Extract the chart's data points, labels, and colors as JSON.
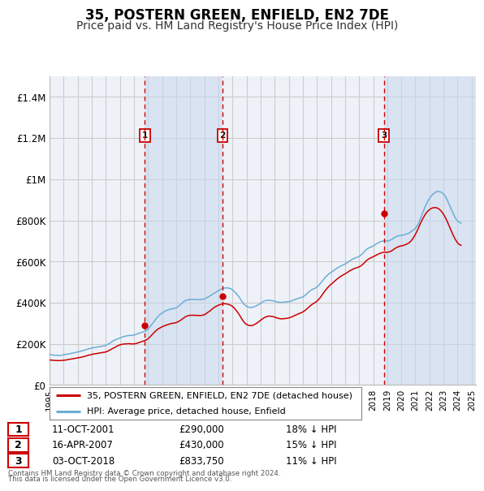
{
  "title": "35, POSTERN GREEN, ENFIELD, EN2 7DE",
  "subtitle": "Price paid vs. HM Land Registry's House Price Index (HPI)",
  "title_fontsize": 12,
  "subtitle_fontsize": 10,
  "background_color": "#ffffff",
  "plot_bg_color": "#eef2f8",
  "grid_color": "#cccccc",
  "ylim": [
    0,
    1500000
  ],
  "yticks": [
    0,
    200000,
    400000,
    600000,
    800000,
    1000000,
    1200000,
    1400000
  ],
  "ytick_labels": [
    "£0",
    "£200K",
    "£400K",
    "£600K",
    "£800K",
    "£1M",
    "£1.2M",
    "£1.4M"
  ],
  "xlim_start": 1995.0,
  "xlim_end": 2025.3,
  "transactions": [
    {
      "year": 2001.78,
      "price": 290000,
      "label": "1"
    },
    {
      "year": 2007.29,
      "price": 430000,
      "label": "2"
    },
    {
      "year": 2018.75,
      "price": 833750,
      "label": "3"
    }
  ],
  "transaction_color": "#cc0000",
  "hpi_color": "#6baed6",
  "shade_color": "#c8d8ee",
  "legend_items": [
    {
      "label": "35, POSTERN GREEN, ENFIELD, EN2 7DE (detached house)",
      "color": "#cc0000"
    },
    {
      "label": "HPI: Average price, detached house, Enfield",
      "color": "#6baed6"
    }
  ],
  "table_rows": [
    {
      "num": "1",
      "date": "11-OCT-2001",
      "price": "£290,000",
      "hpi": "18% ↓ HPI"
    },
    {
      "num": "2",
      "date": "16-APR-2007",
      "price": "£430,000",
      "hpi": "15% ↓ HPI"
    },
    {
      "num": "3",
      "date": "03-OCT-2018",
      "price": "£833,750",
      "hpi": "11% ↓ HPI"
    }
  ],
  "footer": "Contains HM Land Registry data © Crown copyright and database right 2024.\nThis data is licensed under the Open Government Licence v3.0.",
  "hpi_data_years": [
    1995.0,
    1995.083,
    1995.167,
    1995.25,
    1995.333,
    1995.417,
    1995.5,
    1995.583,
    1995.667,
    1995.75,
    1995.833,
    1995.917,
    1996.0,
    1996.083,
    1996.167,
    1996.25,
    1996.333,
    1996.417,
    1996.5,
    1996.583,
    1996.667,
    1996.75,
    1996.833,
    1996.917,
    1997.0,
    1997.083,
    1997.167,
    1997.25,
    1997.333,
    1997.417,
    1997.5,
    1997.583,
    1997.667,
    1997.75,
    1997.833,
    1997.917,
    1998.0,
    1998.083,
    1998.167,
    1998.25,
    1998.333,
    1998.417,
    1998.5,
    1998.583,
    1998.667,
    1998.75,
    1998.833,
    1998.917,
    1999.0,
    1999.083,
    1999.167,
    1999.25,
    1999.333,
    1999.417,
    1999.5,
    1999.583,
    1999.667,
    1999.75,
    1999.833,
    1999.917,
    2000.0,
    2000.083,
    2000.167,
    2000.25,
    2000.333,
    2000.417,
    2000.5,
    2000.583,
    2000.667,
    2000.75,
    2000.833,
    2000.917,
    2001.0,
    2001.083,
    2001.167,
    2001.25,
    2001.333,
    2001.417,
    2001.5,
    2001.583,
    2001.667,
    2001.75,
    2001.833,
    2001.917,
    2002.0,
    2002.083,
    2002.167,
    2002.25,
    2002.333,
    2002.417,
    2002.5,
    2002.583,
    2002.667,
    2002.75,
    2002.833,
    2002.917,
    2003.0,
    2003.083,
    2003.167,
    2003.25,
    2003.333,
    2003.417,
    2003.5,
    2003.583,
    2003.667,
    2003.75,
    2003.833,
    2003.917,
    2004.0,
    2004.083,
    2004.167,
    2004.25,
    2004.333,
    2004.417,
    2004.5,
    2004.583,
    2004.667,
    2004.75,
    2004.833,
    2004.917,
    2005.0,
    2005.083,
    2005.167,
    2005.25,
    2005.333,
    2005.417,
    2005.5,
    2005.583,
    2005.667,
    2005.75,
    2005.833,
    2005.917,
    2006.0,
    2006.083,
    2006.167,
    2006.25,
    2006.333,
    2006.417,
    2006.5,
    2006.583,
    2006.667,
    2006.75,
    2006.833,
    2006.917,
    2007.0,
    2007.083,
    2007.167,
    2007.25,
    2007.333,
    2007.417,
    2007.5,
    2007.583,
    2007.667,
    2007.75,
    2007.833,
    2007.917,
    2008.0,
    2008.083,
    2008.167,
    2008.25,
    2008.333,
    2008.417,
    2008.5,
    2008.583,
    2008.667,
    2008.75,
    2008.833,
    2008.917,
    2009.0,
    2009.083,
    2009.167,
    2009.25,
    2009.333,
    2009.417,
    2009.5,
    2009.583,
    2009.667,
    2009.75,
    2009.833,
    2009.917,
    2010.0,
    2010.083,
    2010.167,
    2010.25,
    2010.333,
    2010.417,
    2010.5,
    2010.583,
    2010.667,
    2010.75,
    2010.833,
    2010.917,
    2011.0,
    2011.083,
    2011.167,
    2011.25,
    2011.333,
    2011.417,
    2011.5,
    2011.583,
    2011.667,
    2011.75,
    2011.833,
    2011.917,
    2012.0,
    2012.083,
    2012.167,
    2012.25,
    2012.333,
    2012.417,
    2012.5,
    2012.583,
    2012.667,
    2012.75,
    2012.833,
    2012.917,
    2013.0,
    2013.083,
    2013.167,
    2013.25,
    2013.333,
    2013.417,
    2013.5,
    2013.583,
    2013.667,
    2013.75,
    2013.833,
    2013.917,
    2014.0,
    2014.083,
    2014.167,
    2014.25,
    2014.333,
    2014.417,
    2014.5,
    2014.583,
    2014.667,
    2014.75,
    2014.833,
    2014.917,
    2015.0,
    2015.083,
    2015.167,
    2015.25,
    2015.333,
    2015.417,
    2015.5,
    2015.583,
    2015.667,
    2015.75,
    2015.833,
    2015.917,
    2016.0,
    2016.083,
    2016.167,
    2016.25,
    2016.333,
    2016.417,
    2016.5,
    2016.583,
    2016.667,
    2016.75,
    2016.833,
    2016.917,
    2017.0,
    2017.083,
    2017.167,
    2017.25,
    2017.333,
    2017.417,
    2017.5,
    2017.583,
    2017.667,
    2017.75,
    2017.833,
    2017.917,
    2018.0,
    2018.083,
    2018.167,
    2018.25,
    2018.333,
    2018.417,
    2018.5,
    2018.583,
    2018.667,
    2018.75,
    2018.833,
    2018.917,
    2019.0,
    2019.083,
    2019.167,
    2019.25,
    2019.333,
    2019.417,
    2019.5,
    2019.583,
    2019.667,
    2019.75,
    2019.833,
    2019.917,
    2020.0,
    2020.083,
    2020.167,
    2020.25,
    2020.333,
    2020.417,
    2020.5,
    2020.583,
    2020.667,
    2020.75,
    2020.833,
    2020.917,
    2021.0,
    2021.083,
    2021.167,
    2021.25,
    2021.333,
    2021.417,
    2021.5,
    2021.583,
    2021.667,
    2021.75,
    2021.833,
    2021.917,
    2022.0,
    2022.083,
    2022.167,
    2022.25,
    2022.333,
    2022.417,
    2022.5,
    2022.583,
    2022.667,
    2022.75,
    2022.833,
    2022.917,
    2023.0,
    2023.083,
    2023.167,
    2023.25,
    2023.333,
    2023.417,
    2023.5,
    2023.583,
    2023.667,
    2023.75,
    2023.833,
    2023.917,
    2024.0,
    2024.083,
    2024.167,
    2024.25
  ],
  "hpi_data_values": [
    148000,
    147000,
    146500,
    146000,
    145500,
    145000,
    145000,
    144500,
    144000,
    144000,
    145000,
    146000,
    147000,
    148000,
    149000,
    150000,
    151000,
    152000,
    153000,
    155000,
    156000,
    157000,
    158000,
    160000,
    161000,
    162000,
    163000,
    165000,
    167000,
    168000,
    170000,
    172000,
    174000,
    176000,
    177000,
    179000,
    180000,
    181000,
    182000,
    183000,
    184000,
    185000,
    186000,
    187000,
    188000,
    189000,
    190000,
    191000,
    193000,
    196000,
    199000,
    202000,
    206000,
    210000,
    214000,
    217000,
    220000,
    222000,
    224000,
    227000,
    229000,
    231000,
    233000,
    235000,
    237000,
    238000,
    239000,
    240000,
    241000,
    241000,
    241000,
    242000,
    243000,
    245000,
    247000,
    249000,
    251000,
    253000,
    255000,
    257000,
    259000,
    261000,
    263000,
    266000,
    272000,
    279000,
    286000,
    293000,
    301000,
    308000,
    316000,
    323000,
    330000,
    336000,
    342000,
    346000,
    350000,
    354000,
    357000,
    360000,
    363000,
    365000,
    367000,
    369000,
    370000,
    371000,
    372000,
    373000,
    375000,
    379000,
    383000,
    388000,
    393000,
    398000,
    403000,
    407000,
    411000,
    413000,
    414000,
    415000,
    416000,
    416000,
    416000,
    416000,
    416000,
    415000,
    415000,
    415000,
    415000,
    415000,
    416000,
    417000,
    418000,
    421000,
    424000,
    427000,
    430000,
    434000,
    437000,
    441000,
    445000,
    448000,
    451000,
    455000,
    459000,
    462000,
    465000,
    468000,
    470000,
    471000,
    472000,
    472000,
    472000,
    471000,
    469000,
    467000,
    463000,
    458000,
    452000,
    446000,
    440000,
    433000,
    425000,
    416000,
    407000,
    399000,
    392000,
    387000,
    383000,
    380000,
    378000,
    377000,
    377000,
    378000,
    380000,
    382000,
    384000,
    387000,
    390000,
    393000,
    397000,
    401000,
    405000,
    408000,
    410000,
    411000,
    412000,
    412000,
    412000,
    411000,
    410000,
    409000,
    407000,
    405000,
    404000,
    403000,
    402000,
    402000,
    402000,
    402000,
    403000,
    404000,
    404000,
    405000,
    405000,
    406000,
    408000,
    410000,
    413000,
    415000,
    417000,
    419000,
    421000,
    423000,
    424000,
    426000,
    429000,
    432000,
    436000,
    441000,
    447000,
    452000,
    457000,
    461000,
    464000,
    467000,
    469000,
    472000,
    476000,
    481000,
    487000,
    494000,
    501000,
    508000,
    515000,
    522000,
    528000,
    534000,
    539000,
    543000,
    547000,
    551000,
    555000,
    559000,
    563000,
    567000,
    571000,
    574000,
    577000,
    580000,
    582000,
    585000,
    588000,
    591000,
    595000,
    599000,
    603000,
    607000,
    610000,
    613000,
    616000,
    618000,
    620000,
    622000,
    625000,
    629000,
    634000,
    639000,
    645000,
    651000,
    657000,
    662000,
    665000,
    668000,
    670000,
    673000,
    676000,
    679000,
    683000,
    687000,
    690000,
    693000,
    696000,
    698000,
    699000,
    700000,
    700000,
    700000,
    700000,
    701000,
    703000,
    705000,
    708000,
    712000,
    716000,
    719000,
    722000,
    724000,
    725000,
    726000,
    727000,
    728000,
    729000,
    731000,
    733000,
    735000,
    737000,
    740000,
    744000,
    748000,
    752000,
    756000,
    762000,
    769000,
    778000,
    790000,
    804000,
    818000,
    833000,
    848000,
    862000,
    875000,
    887000,
    897000,
    906000,
    914000,
    921000,
    927000,
    932000,
    936000,
    939000,
    940000,
    940000,
    939000,
    937000,
    933000,
    928000,
    921000,
    912000,
    901000,
    888000,
    875000,
    862000,
    849000,
    836000,
    824000,
    813000,
    804000,
    797000,
    792000,
    789000,
    787000
  ],
  "prop_data_years": [
    1995.0,
    1995.083,
    1995.167,
    1995.25,
    1995.333,
    1995.417,
    1995.5,
    1995.583,
    1995.667,
    1995.75,
    1995.833,
    1995.917,
    1996.0,
    1996.083,
    1996.167,
    1996.25,
    1996.333,
    1996.417,
    1996.5,
    1996.583,
    1996.667,
    1996.75,
    1996.833,
    1996.917,
    1997.0,
    1997.083,
    1997.167,
    1997.25,
    1997.333,
    1997.417,
    1997.5,
    1997.583,
    1997.667,
    1997.75,
    1997.833,
    1997.917,
    1998.0,
    1998.083,
    1998.167,
    1998.25,
    1998.333,
    1998.417,
    1998.5,
    1998.583,
    1998.667,
    1998.75,
    1998.833,
    1998.917,
    1999.0,
    1999.083,
    1999.167,
    1999.25,
    1999.333,
    1999.417,
    1999.5,
    1999.583,
    1999.667,
    1999.75,
    1999.833,
    1999.917,
    2000.0,
    2000.083,
    2000.167,
    2000.25,
    2000.333,
    2000.417,
    2000.5,
    2000.583,
    2000.667,
    2000.75,
    2000.833,
    2000.917,
    2001.0,
    2001.083,
    2001.167,
    2001.25,
    2001.333,
    2001.417,
    2001.5,
    2001.583,
    2001.667,
    2001.75,
    2001.833,
    2001.917,
    2002.0,
    2002.083,
    2002.167,
    2002.25,
    2002.333,
    2002.417,
    2002.5,
    2002.583,
    2002.667,
    2002.75,
    2002.833,
    2002.917,
    2003.0,
    2003.083,
    2003.167,
    2003.25,
    2003.333,
    2003.417,
    2003.5,
    2003.583,
    2003.667,
    2003.75,
    2003.833,
    2003.917,
    2004.0,
    2004.083,
    2004.167,
    2004.25,
    2004.333,
    2004.417,
    2004.5,
    2004.583,
    2004.667,
    2004.75,
    2004.833,
    2004.917,
    2005.0,
    2005.083,
    2005.167,
    2005.25,
    2005.333,
    2005.417,
    2005.5,
    2005.583,
    2005.667,
    2005.75,
    2005.833,
    2005.917,
    2006.0,
    2006.083,
    2006.167,
    2006.25,
    2006.333,
    2006.417,
    2006.5,
    2006.583,
    2006.667,
    2006.75,
    2006.833,
    2006.917,
    2007.0,
    2007.083,
    2007.167,
    2007.25,
    2007.333,
    2007.417,
    2007.5,
    2007.583,
    2007.667,
    2007.75,
    2007.833,
    2007.917,
    2008.0,
    2008.083,
    2008.167,
    2008.25,
    2008.333,
    2008.417,
    2008.5,
    2008.583,
    2008.667,
    2008.75,
    2008.833,
    2008.917,
    2009.0,
    2009.083,
    2009.167,
    2009.25,
    2009.333,
    2009.417,
    2009.5,
    2009.583,
    2009.667,
    2009.75,
    2009.833,
    2009.917,
    2010.0,
    2010.083,
    2010.167,
    2010.25,
    2010.333,
    2010.417,
    2010.5,
    2010.583,
    2010.667,
    2010.75,
    2010.833,
    2010.917,
    2011.0,
    2011.083,
    2011.167,
    2011.25,
    2011.333,
    2011.417,
    2011.5,
    2011.583,
    2011.667,
    2011.75,
    2011.833,
    2011.917,
    2012.0,
    2012.083,
    2012.167,
    2012.25,
    2012.333,
    2012.417,
    2012.5,
    2012.583,
    2012.667,
    2012.75,
    2012.833,
    2012.917,
    2013.0,
    2013.083,
    2013.167,
    2013.25,
    2013.333,
    2013.417,
    2013.5,
    2013.583,
    2013.667,
    2013.75,
    2013.833,
    2013.917,
    2014.0,
    2014.083,
    2014.167,
    2014.25,
    2014.333,
    2014.417,
    2014.5,
    2014.583,
    2014.667,
    2014.75,
    2014.833,
    2014.917,
    2015.0,
    2015.083,
    2015.167,
    2015.25,
    2015.333,
    2015.417,
    2015.5,
    2015.583,
    2015.667,
    2015.75,
    2015.833,
    2015.917,
    2016.0,
    2016.083,
    2016.167,
    2016.25,
    2016.333,
    2016.417,
    2016.5,
    2016.583,
    2016.667,
    2016.75,
    2016.833,
    2016.917,
    2017.0,
    2017.083,
    2017.167,
    2017.25,
    2017.333,
    2017.417,
    2017.5,
    2017.583,
    2017.667,
    2017.75,
    2017.833,
    2017.917,
    2018.0,
    2018.083,
    2018.167,
    2018.25,
    2018.333,
    2018.417,
    2018.5,
    2018.583,
    2018.667,
    2018.75,
    2018.833,
    2018.917,
    2019.0,
    2019.083,
    2019.167,
    2019.25,
    2019.333,
    2019.417,
    2019.5,
    2019.583,
    2019.667,
    2019.75,
    2019.833,
    2019.917,
    2020.0,
    2020.083,
    2020.167,
    2020.25,
    2020.333,
    2020.417,
    2020.5,
    2020.583,
    2020.667,
    2020.75,
    2020.833,
    2020.917,
    2021.0,
    2021.083,
    2021.167,
    2021.25,
    2021.333,
    2021.417,
    2021.5,
    2021.583,
    2021.667,
    2021.75,
    2021.833,
    2021.917,
    2022.0,
    2022.083,
    2022.167,
    2022.25,
    2022.333,
    2022.417,
    2022.5,
    2022.583,
    2022.667,
    2022.75,
    2022.833,
    2022.917,
    2023.0,
    2023.083,
    2023.167,
    2023.25,
    2023.333,
    2023.417,
    2023.5,
    2023.583,
    2023.667,
    2023.75,
    2023.833,
    2023.917,
    2024.0,
    2024.083,
    2024.167,
    2024.25
  ],
  "prop_data_values": [
    122000,
    121500,
    121000,
    120500,
    120000,
    119500,
    119000,
    119000,
    119000,
    119000,
    119500,
    120000,
    120500,
    121000,
    122000,
    123000,
    124000,
    125000,
    126000,
    127000,
    128000,
    129000,
    130000,
    131000,
    132000,
    133000,
    134000,
    135000,
    137000,
    138000,
    140000,
    141000,
    143000,
    145000,
    146000,
    147000,
    149000,
    150000,
    151000,
    152000,
    153000,
    154000,
    155000,
    156000,
    157000,
    158000,
    159000,
    160000,
    161000,
    163000,
    166000,
    169000,
    172000,
    175000,
    178000,
    181000,
    184000,
    187000,
    190000,
    193000,
    195000,
    197000,
    198000,
    199000,
    200000,
    200000,
    200500,
    201000,
    201000,
    200500,
    200000,
    200000,
    200000,
    201000,
    202000,
    204000,
    206000,
    208000,
    210000,
    212000,
    214000,
    216000,
    218000,
    221000,
    225000,
    230000,
    236000,
    242000,
    248000,
    254000,
    260000,
    265000,
    270000,
    274000,
    277000,
    280000,
    283000,
    286000,
    288000,
    290000,
    292000,
    294000,
    296000,
    298000,
    299000,
    300000,
    301000,
    302000,
    303000,
    306000,
    309000,
    312000,
    316000,
    320000,
    324000,
    328000,
    332000,
    335000,
    337000,
    338000,
    339000,
    339000,
    339000,
    339000,
    339000,
    339000,
    338000,
    338000,
    338000,
    338000,
    339000,
    340000,
    342000,
    345000,
    349000,
    353000,
    357000,
    361000,
    366000,
    371000,
    375000,
    379000,
    382000,
    385000,
    388000,
    390000,
    392000,
    394000,
    395000,
    395000,
    395000,
    394000,
    393000,
    391000,
    389000,
    386000,
    382000,
    377000,
    371000,
    364000,
    357000,
    349000,
    340000,
    331000,
    321000,
    312000,
    305000,
    299000,
    295000,
    292000,
    290000,
    289000,
    289000,
    290000,
    292000,
    295000,
    298000,
    302000,
    306000,
    310000,
    315000,
    319000,
    323000,
    327000,
    330000,
    332000,
    334000,
    335000,
    335000,
    334000,
    333000,
    332000,
    330000,
    328000,
    326000,
    325000,
    323000,
    322000,
    322000,
    322000,
    323000,
    323000,
    324000,
    325000,
    326000,
    328000,
    330000,
    332000,
    335000,
    338000,
    340000,
    343000,
    345000,
    348000,
    350000,
    352000,
    355000,
    359000,
    363000,
    368000,
    373000,
    378000,
    383000,
    388000,
    392000,
    396000,
    399000,
    403000,
    407000,
    413000,
    419000,
    426000,
    434000,
    442000,
    450000,
    458000,
    465000,
    472000,
    478000,
    484000,
    489000,
    494000,
    499000,
    504000,
    509000,
    514000,
    518000,
    523000,
    527000,
    530000,
    534000,
    537000,
    540000,
    543000,
    547000,
    551000,
    555000,
    558000,
    561000,
    564000,
    566000,
    568000,
    570000,
    572000,
    574000,
    577000,
    581000,
    586000,
    591000,
    597000,
    603000,
    608000,
    612000,
    615000,
    618000,
    621000,
    623000,
    626000,
    629000,
    632000,
    635000,
    638000,
    640000,
    642000,
    644000,
    645000,
    645000,
    645000,
    645000,
    646000,
    648000,
    650000,
    653000,
    657000,
    661000,
    665000,
    668000,
    671000,
    673000,
    675000,
    676000,
    677000,
    679000,
    681000,
    683000,
    686000,
    689000,
    693000,
    698000,
    705000,
    713000,
    722000,
    732000,
    743000,
    755000,
    768000,
    781000,
    793000,
    805000,
    815000,
    825000,
    834000,
    841000,
    847000,
    852000,
    856000,
    859000,
    861000,
    862000,
    862000,
    861000,
    859000,
    856000,
    851000,
    845000,
    838000,
    830000,
    820000,
    809000,
    797000,
    784000,
    770000,
    757000,
    744000,
    731000,
    719000,
    708000,
    699000,
    691000,
    685000,
    681000,
    679000
  ]
}
